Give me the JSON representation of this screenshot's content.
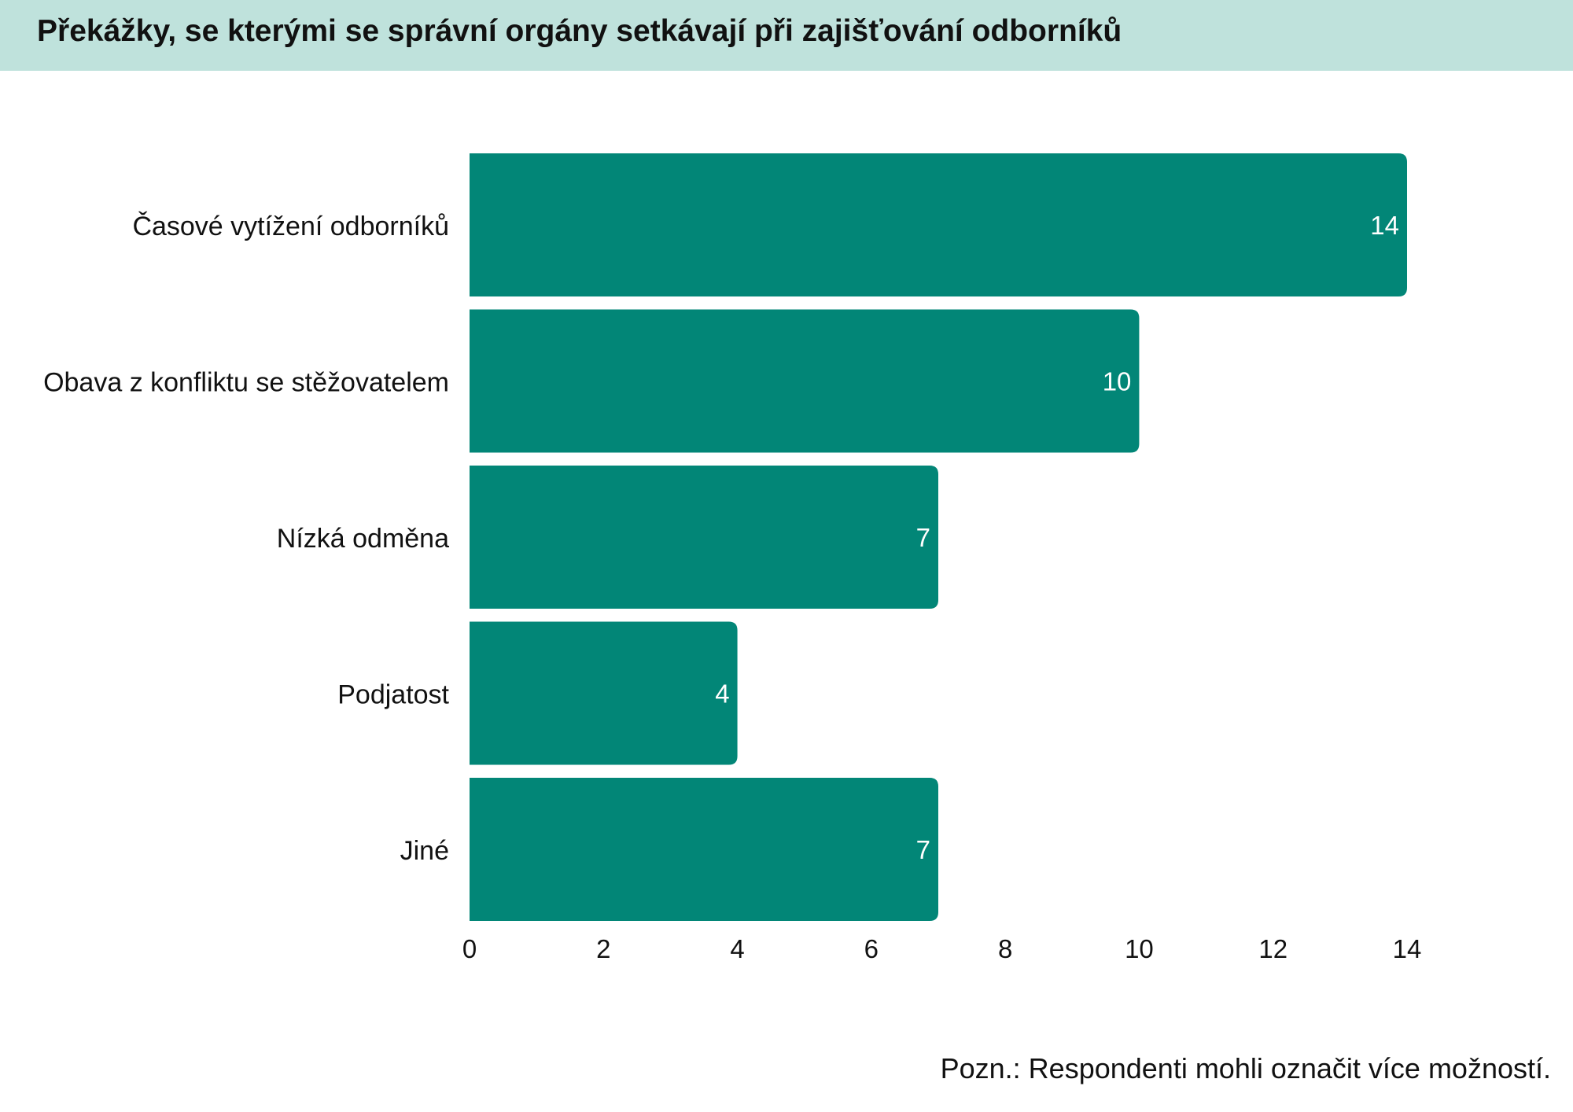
{
  "title": "Překážky, se kterými se správní orgány setkávají při zajišťování odborníků",
  "note": "Pozn.: Respondenti mohli označit více možností.",
  "colors": {
    "bar": "#028677",
    "title_band": "#bfe2dc",
    "value_label": "#ffffff",
    "text": "#111111"
  },
  "chart_data": {
    "type": "bar",
    "orientation": "horizontal",
    "categories": [
      "Časové vytížení odborníků",
      "Obava z konfliktu se stěžovatelem",
      "Nízká odměna",
      "Podjatost",
      "Jiné"
    ],
    "values": [
      14,
      10,
      7,
      4,
      7
    ],
    "xlim": [
      0,
      14
    ],
    "xticks": [
      0,
      2,
      4,
      6,
      8,
      10,
      12,
      14
    ],
    "grid": false,
    "data_labels": true,
    "xlabel": "",
    "ylabel": ""
  }
}
